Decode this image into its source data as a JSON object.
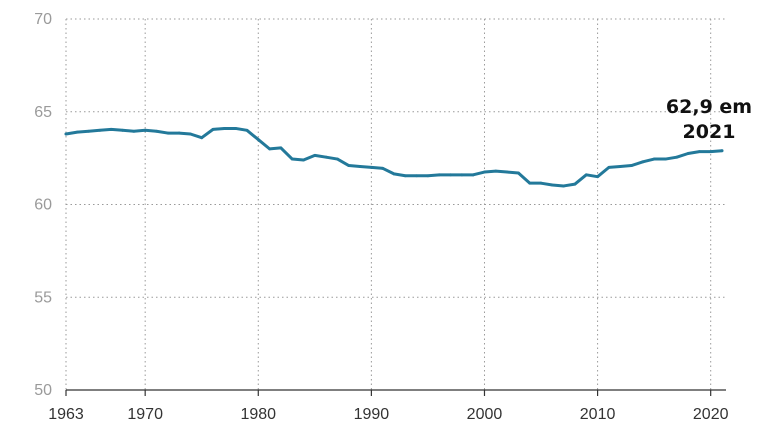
{
  "chart_data": {
    "type": "line",
    "title": "",
    "xlabel": "",
    "ylabel": "",
    "xlim": [
      1963,
      2021
    ],
    "ylim": [
      50,
      70
    ],
    "y_ticks": [
      "50",
      "55",
      "60",
      "65",
      "70"
    ],
    "x_ticks": [
      "1963",
      "1970",
      "1980",
      "1990",
      "2000",
      "2010",
      "2020"
    ],
    "grid": true,
    "line_color": "#23799a",
    "series": [
      {
        "x": [
          1963,
          1964,
          1965,
          1966,
          1967,
          1968,
          1969,
          1970,
          1971,
          1972,
          1973,
          1974,
          1975,
          1976,
          1977,
          1978,
          1979,
          1980,
          1981,
          1982,
          1983,
          1984,
          1985,
          1986,
          1987,
          1988,
          1989,
          1990,
          1991,
          1992,
          1993,
          1994,
          1995,
          1996,
          1997,
          1998,
          1999,
          2000,
          2001,
          2002,
          2003,
          2004,
          2005,
          2006,
          2007,
          2008,
          2009,
          2010,
          2011,
          2012,
          2013,
          2014,
          2015,
          2016,
          2017,
          2018,
          2019,
          2020,
          2021
        ],
        "y": [
          63.8,
          63.9,
          63.95,
          64.0,
          64.05,
          64.0,
          63.95,
          64.0,
          63.95,
          63.85,
          63.85,
          63.8,
          63.6,
          64.05,
          64.1,
          64.1,
          64.0,
          63.5,
          63.0,
          63.05,
          62.45,
          62.4,
          62.65,
          62.55,
          62.45,
          62.1,
          62.05,
          62.0,
          61.95,
          61.65,
          61.55,
          61.55,
          61.55,
          61.6,
          61.6,
          61.6,
          61.6,
          61.75,
          61.8,
          61.75,
          61.7,
          61.15,
          61.15,
          61.05,
          61.0,
          61.1,
          61.6,
          61.5,
          62.0,
          62.05,
          62.1,
          62.3,
          62.45,
          62.45,
          62.55,
          62.75,
          62.85,
          62.85,
          62.9
        ]
      }
    ],
    "annotation": {
      "line1": "62,9 em",
      "line2": "2021"
    }
  }
}
